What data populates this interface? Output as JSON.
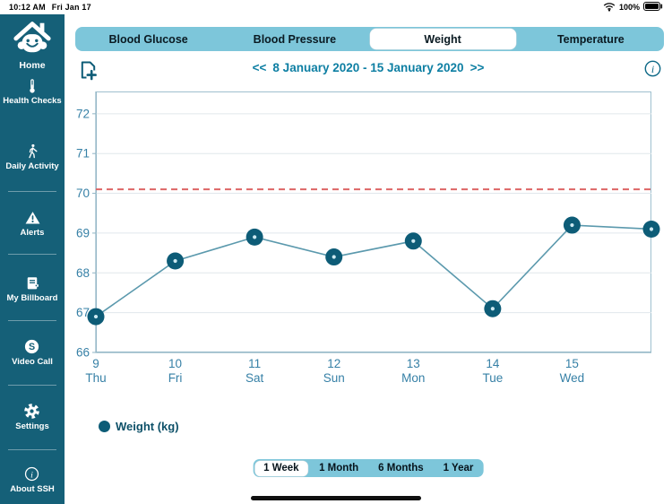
{
  "status_bar": {
    "time": "10:12 AM",
    "date": "Fri Jan 17",
    "battery_percent": "100%"
  },
  "sidebar": {
    "items": [
      {
        "label": "Home",
        "icon": "home-icon",
        "divider_after": false
      },
      {
        "label": "Health Checks",
        "icon": "thermometer-icon",
        "divider_after": false
      },
      {
        "label": "Daily Activity",
        "icon": "walking-person-icon",
        "divider_after": true
      },
      {
        "label": "Alerts",
        "icon": "alert-triangle-icon",
        "divider_after": true
      },
      {
        "label": "My Billboard",
        "icon": "billboard-icon",
        "divider_after": true
      },
      {
        "label": "Video Call",
        "icon": "skype-icon",
        "divider_after": true
      },
      {
        "label": "Settings",
        "icon": "gear-icon",
        "divider_after": true
      },
      {
        "label": "About SSH",
        "icon": "info-circle-icon",
        "divider_after": false
      }
    ]
  },
  "tabs": {
    "items": [
      {
        "label": "Blood Glucose",
        "selected": false
      },
      {
        "label": "Blood Pressure",
        "selected": false
      },
      {
        "label": "Weight",
        "selected": true
      },
      {
        "label": "Temperature",
        "selected": false
      }
    ]
  },
  "toolbar": {
    "prev_label": "<<",
    "date_range": "8 January 2020 - 15 January 2020",
    "next_label": ">>",
    "add_record_icon": "add-record-icon",
    "info_icon": "info-icon"
  },
  "chart_data": {
    "type": "line",
    "title": "",
    "xlabel": "",
    "ylabel": "",
    "ylim": [
      66,
      72.56
    ],
    "yticks": [
      66,
      67,
      68,
      69,
      70,
      71,
      72
    ],
    "grid": true,
    "categories_day": [
      "9",
      "10",
      "11",
      "12",
      "13",
      "14",
      "15"
    ],
    "categories_weekday": [
      "Thu",
      "Fri",
      "Sat",
      "Sun",
      "Mon",
      "Tue",
      "Wed"
    ],
    "labeled_point_count": 7,
    "series": [
      {
        "name": "Weight (kg)",
        "values": [
          66.9,
          68.3,
          68.9,
          68.4,
          68.8,
          67.1,
          69.2,
          69.1
        ]
      }
    ],
    "threshold_line": {
      "value": 70.1,
      "style": "dashed"
    },
    "legend_position": "bottom-left"
  },
  "legend": {
    "label": "Weight (kg)"
  },
  "range_selector": {
    "options": [
      {
        "label": "1 Week",
        "selected": true
      },
      {
        "label": "1 Month",
        "selected": false
      },
      {
        "label": "6 Months",
        "selected": false
      },
      {
        "label": "1 Year",
        "selected": false
      }
    ]
  },
  "colors": {
    "sidebar_bg": "#156078",
    "tab_bar_bg": "#7dc6da",
    "accent_teal": "#0e7fa3",
    "dot_color": "#0d5c77",
    "dot_center_color": "#cde9f1",
    "line_color": "#5b99ad",
    "threshold_color": "#dd6666",
    "grid_color": "#e0e7ec",
    "axis_color": "#9fc0cf",
    "axis_strong_color": "#8fb4c4",
    "axis_label_color": "#3680a6",
    "legend_text_color": "#0d5068"
  }
}
